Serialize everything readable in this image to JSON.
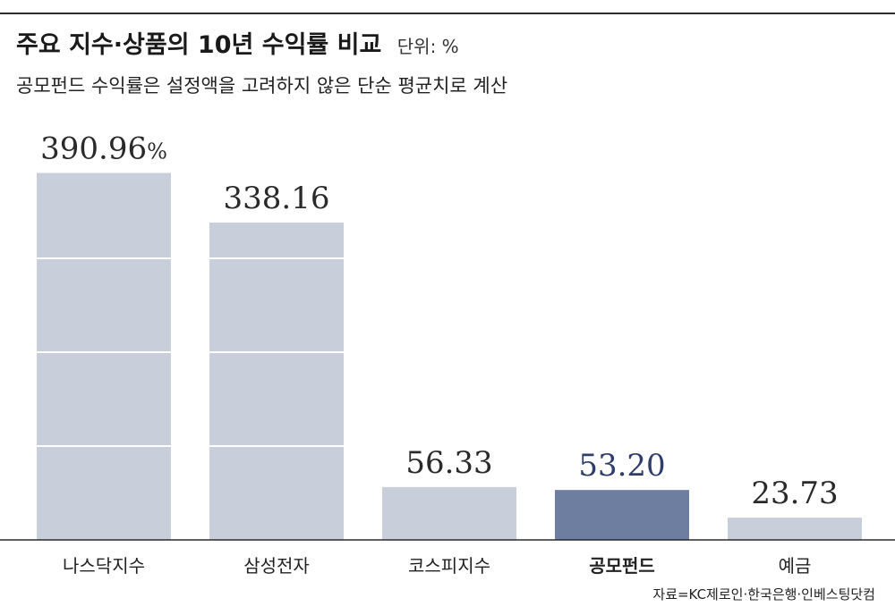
{
  "chart_data": {
    "type": "bar",
    "title": "주요 지수·상품의 10년 수익률 비교",
    "unit_label": "단위: %",
    "subtitle": "공모펀드 수익률은 설정액을 고려하지 않은 단순 평균치로 계산",
    "categories": [
      "나스닥지수",
      "삼성전자",
      "코스피지수",
      "공모펀드",
      "예금"
    ],
    "values": [
      390.96,
      338.16,
      56.33,
      53.2,
      23.73
    ],
    "value_labels": [
      "390.96",
      "338.16",
      "56.33",
      "53.20",
      "23.73"
    ],
    "first_value_suffix": "%",
    "highlight_index": 3,
    "ylim": [
      0,
      400
    ],
    "gridlines": [
      0,
      100,
      200,
      300
    ],
    "xlabel": "",
    "ylabel": "",
    "source": "자료=KC제로인·한국은행·인베스팅닷컴"
  },
  "colors": {
    "bar": "#c8ceda",
    "bar_highlight": "#6e7ea1",
    "value_highlight": "#2e3d6b",
    "axis": "#2b2b2b",
    "grid": "#ffffff"
  }
}
